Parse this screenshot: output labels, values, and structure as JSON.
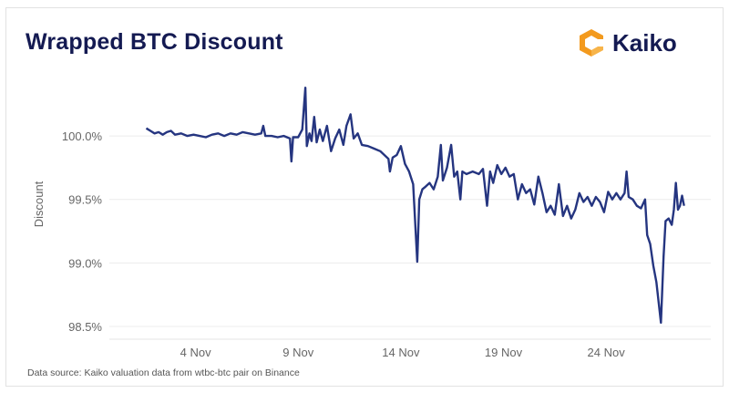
{
  "header": {
    "title": "Wrapped BTC Discount",
    "logo_text": "Kaiko"
  },
  "footer": {
    "source": "Data source: Kaiko valuation data from wtbc-btc pair on Binance"
  },
  "colors": {
    "line": "#253580",
    "title": "#141a52",
    "logo_orange": "#f39a1e",
    "grid": "#ececec"
  },
  "chart_data": {
    "type": "line",
    "title": "Wrapped BTC Discount",
    "xlabel": "",
    "ylabel": "Discount",
    "x_unit": "day of November",
    "xlim": [
      -0.2,
      29.1
    ],
    "ylim": [
      98.45,
      100.42
    ],
    "grid": "horizontal",
    "x_ticks": [
      {
        "value": 4,
        "label": "4 Nov"
      },
      {
        "value": 9,
        "label": "9 Nov"
      },
      {
        "value": 14,
        "label": "14 Nov"
      },
      {
        "value": 19,
        "label": "19 Nov"
      },
      {
        "value": 24,
        "label": "24 Nov"
      }
    ],
    "y_ticks": [
      {
        "value": 100.0,
        "label": "100.0%"
      },
      {
        "value": 99.5,
        "label": "99.5%"
      },
      {
        "value": 99.0,
        "label": "99.0%"
      },
      {
        "value": 98.5,
        "label": "98.5%"
      }
    ],
    "series": [
      {
        "points": [
          [
            1.6,
            100.06
          ],
          [
            1.8,
            100.04
          ],
          [
            2.0,
            100.02
          ],
          [
            2.2,
            100.03
          ],
          [
            2.4,
            100.01
          ],
          [
            2.6,
            100.03
          ],
          [
            2.8,
            100.04
          ],
          [
            3.0,
            100.01
          ],
          [
            3.3,
            100.02
          ],
          [
            3.6,
            100.0
          ],
          [
            3.9,
            100.01
          ],
          [
            4.2,
            100.0
          ],
          [
            4.5,
            99.99
          ],
          [
            4.8,
            100.01
          ],
          [
            5.1,
            100.02
          ],
          [
            5.4,
            100.0
          ],
          [
            5.7,
            100.02
          ],
          [
            6.0,
            100.01
          ],
          [
            6.3,
            100.03
          ],
          [
            6.6,
            100.02
          ],
          [
            6.9,
            100.01
          ],
          [
            7.2,
            100.02
          ],
          [
            7.3,
            100.08
          ],
          [
            7.4,
            100.0
          ],
          [
            7.7,
            100.0
          ],
          [
            8.0,
            99.99
          ],
          [
            8.3,
            100.0
          ],
          [
            8.6,
            99.98
          ],
          [
            8.67,
            99.8
          ],
          [
            8.75,
            99.99
          ],
          [
            9.0,
            99.99
          ],
          [
            9.2,
            100.05
          ],
          [
            9.35,
            100.38
          ],
          [
            9.42,
            99.92
          ],
          [
            9.55,
            100.02
          ],
          [
            9.65,
            99.96
          ],
          [
            9.78,
            100.15
          ],
          [
            9.9,
            99.95
          ],
          [
            10.05,
            100.05
          ],
          [
            10.2,
            99.96
          ],
          [
            10.4,
            100.08
          ],
          [
            10.6,
            99.88
          ],
          [
            10.8,
            99.98
          ],
          [
            11.0,
            100.05
          ],
          [
            11.2,
            99.93
          ],
          [
            11.35,
            100.08
          ],
          [
            11.55,
            100.17
          ],
          [
            11.7,
            99.98
          ],
          [
            11.9,
            100.02
          ],
          [
            12.1,
            99.93
          ],
          [
            12.4,
            99.92
          ],
          [
            12.7,
            99.9
          ],
          [
            13.0,
            99.88
          ],
          [
            13.2,
            99.85
          ],
          [
            13.4,
            99.82
          ],
          [
            13.47,
            99.72
          ],
          [
            13.6,
            99.83
          ],
          [
            13.8,
            99.85
          ],
          [
            14.0,
            99.92
          ],
          [
            14.2,
            99.78
          ],
          [
            14.4,
            99.72
          ],
          [
            14.6,
            99.62
          ],
          [
            14.8,
            99.01
          ],
          [
            14.9,
            99.5
          ],
          [
            15.05,
            99.58
          ],
          [
            15.2,
            99.6
          ],
          [
            15.4,
            99.63
          ],
          [
            15.6,
            99.58
          ],
          [
            15.8,
            99.68
          ],
          [
            15.95,
            99.93
          ],
          [
            16.05,
            99.65
          ],
          [
            16.25,
            99.75
          ],
          [
            16.45,
            99.93
          ],
          [
            16.6,
            99.68
          ],
          [
            16.75,
            99.72
          ],
          [
            16.9,
            99.5
          ],
          [
            17.0,
            99.72
          ],
          [
            17.2,
            99.7
          ],
          [
            17.5,
            99.72
          ],
          [
            17.8,
            99.7
          ],
          [
            18.0,
            99.74
          ],
          [
            18.2,
            99.45
          ],
          [
            18.35,
            99.72
          ],
          [
            18.5,
            99.63
          ],
          [
            18.7,
            99.77
          ],
          [
            18.9,
            99.7
          ],
          [
            19.1,
            99.75
          ],
          [
            19.3,
            99.68
          ],
          [
            19.5,
            99.7
          ],
          [
            19.7,
            99.5
          ],
          [
            19.9,
            99.62
          ],
          [
            20.1,
            99.55
          ],
          [
            20.3,
            99.58
          ],
          [
            20.5,
            99.46
          ],
          [
            20.7,
            99.68
          ],
          [
            20.9,
            99.55
          ],
          [
            21.1,
            99.4
          ],
          [
            21.3,
            99.45
          ],
          [
            21.5,
            99.38
          ],
          [
            21.7,
            99.62
          ],
          [
            21.9,
            99.37
          ],
          [
            22.1,
            99.45
          ],
          [
            22.3,
            99.35
          ],
          [
            22.5,
            99.42
          ],
          [
            22.7,
            99.55
          ],
          [
            22.9,
            99.48
          ],
          [
            23.1,
            99.52
          ],
          [
            23.3,
            99.45
          ],
          [
            23.5,
            99.52
          ],
          [
            23.7,
            99.48
          ],
          [
            23.9,
            99.4
          ],
          [
            24.1,
            99.56
          ],
          [
            24.3,
            99.5
          ],
          [
            24.5,
            99.55
          ],
          [
            24.7,
            99.5
          ],
          [
            24.9,
            99.55
          ],
          [
            25.0,
            99.72
          ],
          [
            25.1,
            99.52
          ],
          [
            25.3,
            99.5
          ],
          [
            25.5,
            99.45
          ],
          [
            25.7,
            99.43
          ],
          [
            25.9,
            99.5
          ],
          [
            26.0,
            99.22
          ],
          [
            26.15,
            99.15
          ],
          [
            26.3,
            98.98
          ],
          [
            26.45,
            98.85
          ],
          [
            26.67,
            98.53
          ],
          [
            26.8,
            99.05
          ],
          [
            26.9,
            99.33
          ],
          [
            27.05,
            99.35
          ],
          [
            27.2,
            99.3
          ],
          [
            27.3,
            99.42
          ],
          [
            27.4,
            99.63
          ],
          [
            27.5,
            99.42
          ],
          [
            27.6,
            99.45
          ],
          [
            27.7,
            99.53
          ],
          [
            27.8,
            99.45
          ]
        ]
      }
    ]
  }
}
